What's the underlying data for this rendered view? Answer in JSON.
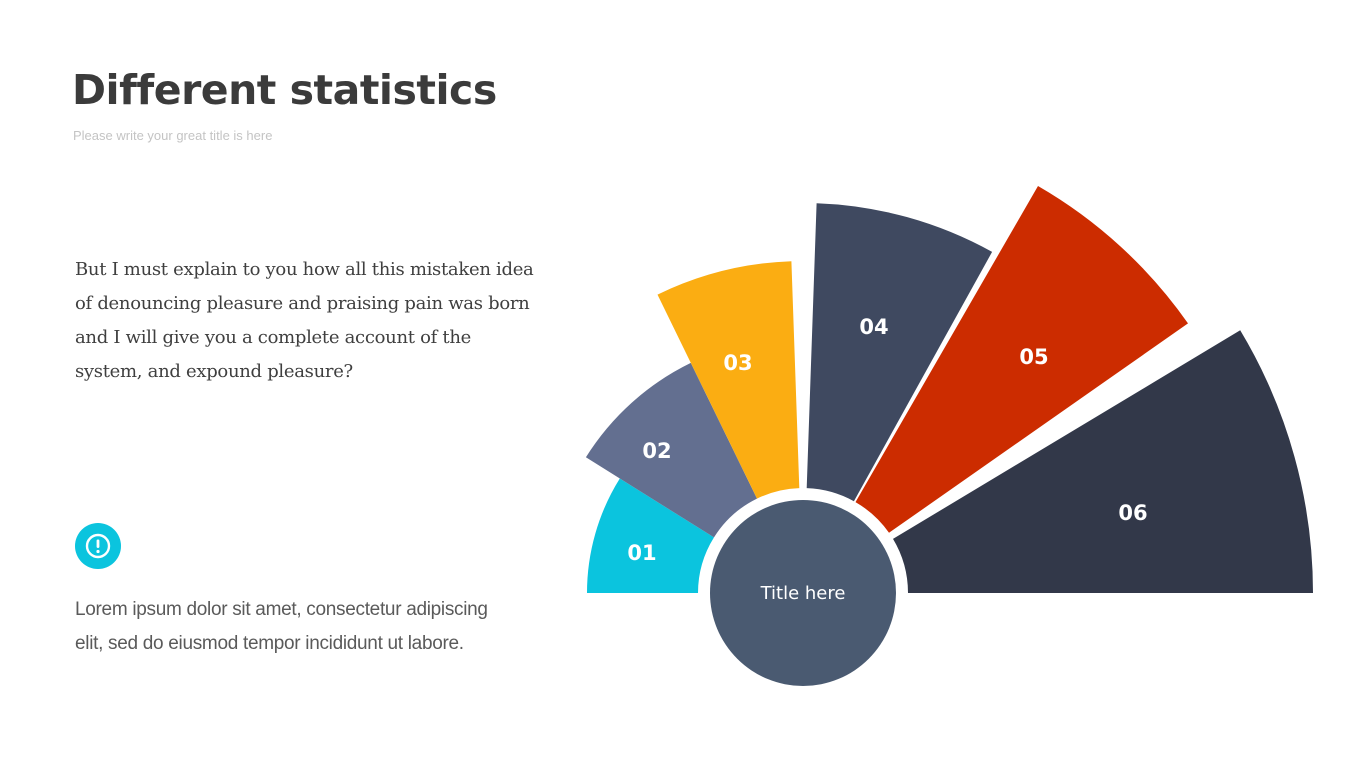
{
  "header": {
    "title": "Different statistics",
    "subtitle": "Please write your great title is here"
  },
  "main": {
    "paragraph": "But I must explain to you how all this mistaken idea of denouncing pleasure and praising pain was born and I will give you a complete account of the system, and expound pleasure?",
    "info_icon": "exclamation-circle-icon",
    "note": "Lorem ipsum dolor sit amet, consectetur adipiscing elit, sed do eiusmod tempor incididunt ut labore."
  },
  "diagram": {
    "center_label": "Title here",
    "center_color": "#4a5a71",
    "segments": [
      {
        "label": "01",
        "color": "#0bc4de"
      },
      {
        "label": "02",
        "color": "#636f90"
      },
      {
        "label": "03",
        "color": "#fbad12"
      },
      {
        "label": "04",
        "color": "#3f4960"
      },
      {
        "label": "05",
        "color": "#cc2c00"
      },
      {
        "label": "06",
        "color": "#323849"
      }
    ]
  }
}
